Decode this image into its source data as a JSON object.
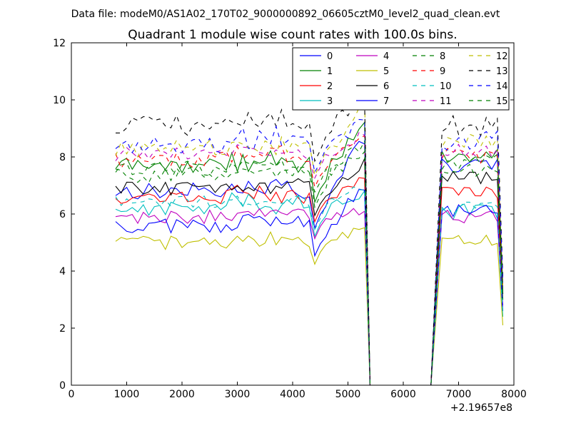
{
  "figure": {
    "suptitle": "Data file: modeM0/AS1A02_170T02_9000000892_06605cztM0_level2_quad_clean.evt"
  },
  "chart_data": {
    "type": "line",
    "title": "Quadrant 1 module wise count rates with 100.0s bins.",
    "xlabel": "",
    "ylabel": "",
    "xlim": [
      0,
      8000
    ],
    "ylim": [
      0,
      12
    ],
    "xticks": [
      0,
      1000,
      2000,
      3000,
      4000,
      5000,
      6000,
      7000,
      8000
    ],
    "yticks": [
      0,
      2,
      4,
      6,
      8,
      10,
      12
    ],
    "x_offset_label": "+2.19657e8",
    "grid": false,
    "legend": {
      "location": "top-right",
      "columns": 4
    },
    "segment1": {
      "start": 800,
      "step": 100,
      "count": 46
    },
    "gap": {
      "x": [
        5400,
        6500
      ],
      "y": 0
    },
    "segment2": {
      "start": 6700,
      "step": 100,
      "count": 12
    },
    "series": [
      {
        "name": "0",
        "color": "#0000ff",
        "style": "solid",
        "base": 6.8,
        "amp": 0.25,
        "dip": 5.6,
        "peak": 8.7,
        "post": 7.7,
        "end": 3.3
      },
      {
        "name": "1",
        "color": "#008000",
        "style": "solid",
        "base": 7.7,
        "amp": 0.25,
        "dip": 6.5,
        "peak": 9.3,
        "post": 8.0,
        "end": 3.0
      },
      {
        "name": "2",
        "color": "#ff0000",
        "style": "solid",
        "base": 6.6,
        "amp": 0.2,
        "dip": 5.8,
        "peak": 7.2,
        "post": 6.8,
        "end": 3.2
      },
      {
        "name": "3",
        "color": "#00bfbf",
        "style": "solid",
        "base": 6.2,
        "amp": 0.25,
        "dip": 5.3,
        "peak": 6.6,
        "post": 6.1,
        "end": 2.4
      },
      {
        "name": "4",
        "color": "#bf00bf",
        "style": "solid",
        "base": 5.9,
        "amp": 0.2,
        "dip": 5.2,
        "peak": 6.2,
        "post": 5.9,
        "end": 2.8
      },
      {
        "name": "5",
        "color": "#bfbf00",
        "style": "solid",
        "base": 5.0,
        "amp": 0.2,
        "dip": 4.3,
        "peak": 5.5,
        "post": 5.1,
        "end": 2.1
      },
      {
        "name": "6",
        "color": "#000000",
        "style": "solid",
        "base": 6.9,
        "amp": 0.2,
        "dip": 6.0,
        "peak": 7.8,
        "post": 7.3,
        "end": 3.2
      },
      {
        "name": "7",
        "color": "#0000ff",
        "style": "solid",
        "base": 5.6,
        "amp": 0.25,
        "dip": 4.6,
        "peak": 7.0,
        "post": 6.1,
        "end": 2.6
      },
      {
        "name": "8",
        "color": "#008000",
        "style": "dashed",
        "base": 7.4,
        "amp": 0.25,
        "dip": 6.3,
        "peak": 8.2,
        "post": 7.5,
        "end": 3.0
      },
      {
        "name": "9",
        "color": "#ff0000",
        "style": "dashed",
        "base": 7.9,
        "amp": 0.25,
        "dip": 7.0,
        "peak": 8.6,
        "post": 8.0,
        "end": 3.5
      },
      {
        "name": "10",
        "color": "#00bfbf",
        "style": "dashed",
        "base": 6.4,
        "amp": 0.2,
        "dip": 5.5,
        "peak": 7.0,
        "post": 6.2,
        "end": 2.5
      },
      {
        "name": "11",
        "color": "#bf00bf",
        "style": "dashed",
        "base": 8.1,
        "amp": 0.2,
        "dip": 7.3,
        "peak": 8.8,
        "post": 8.2,
        "end": 3.6
      },
      {
        "name": "12",
        "color": "#bfbf00",
        "style": "dashed",
        "base": 8.3,
        "amp": 0.25,
        "dip": 7.4,
        "peak": 10.0,
        "post": 8.5,
        "end": 3.5
      },
      {
        "name": "13",
        "color": "#000000",
        "style": "dashed",
        "base": 9.1,
        "amp": 0.3,
        "dip": 7.9,
        "peak": 10.2,
        "post": 9.1,
        "end": 3.8
      },
      {
        "name": "14",
        "color": "#0000ff",
        "style": "dashed",
        "base": 8.5,
        "amp": 0.3,
        "dip": 7.5,
        "peak": 9.4,
        "post": 8.6,
        "end": 3.6
      },
      {
        "name": "15",
        "color": "#008000",
        "style": "dashed",
        "base": 7.6,
        "amp": 0.25,
        "dip": 6.8,
        "peak": 8.5,
        "post": 7.8,
        "end": 3.3
      }
    ]
  }
}
